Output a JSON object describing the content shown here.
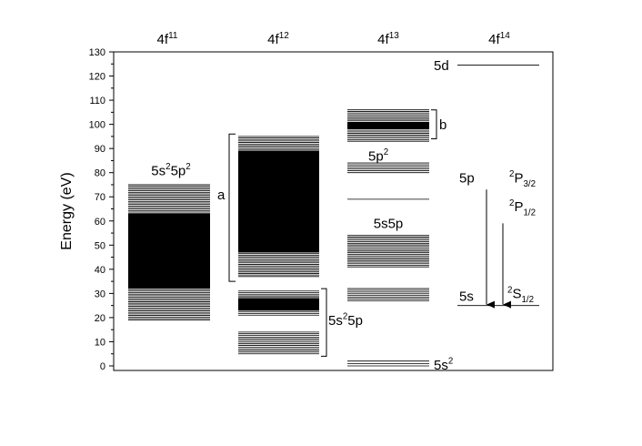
{
  "chart_data": {
    "type": "energy-level-diagram",
    "ylabel": "Energy (eV)",
    "ylim": [
      0,
      130
    ],
    "yticks": [
      0,
      10,
      20,
      30,
      40,
      50,
      60,
      70,
      80,
      90,
      100,
      110,
      120,
      130
    ],
    "columns": [
      {
        "base": "4f",
        "sup": "11"
      },
      {
        "base": "4f",
        "sup": "12"
      },
      {
        "base": "4f",
        "sup": "13"
      },
      {
        "base": "4f",
        "sup": "14"
      }
    ],
    "band_labels": [
      {
        "id": "c0-5s25p2",
        "parts": [
          [
            "5s",
            ""
          ],
          [
            "2",
            "sup"
          ],
          [
            "5p",
            ""
          ],
          [
            "2",
            "sup"
          ]
        ]
      },
      {
        "id": "c1-5s25p",
        "parts": [
          [
            "5s",
            ""
          ],
          [
            "2",
            "sup"
          ],
          [
            "5p",
            ""
          ]
        ]
      },
      {
        "id": "c2-5p2",
        "parts": [
          [
            "5p",
            ""
          ],
          [
            "2",
            "sup"
          ]
        ]
      },
      {
        "id": "c2-5s5p",
        "parts": [
          [
            "5s5p",
            ""
          ]
        ]
      },
      {
        "id": "c2-5s2",
        "parts": [
          [
            "5s",
            ""
          ],
          [
            "2",
            "sup"
          ]
        ]
      },
      {
        "id": "c3-5d",
        "parts": [
          [
            "5d",
            ""
          ]
        ]
      },
      {
        "id": "c3-5p",
        "parts": [
          [
            "5p",
            ""
          ]
        ]
      },
      {
        "id": "c3-5s",
        "parts": [
          [
            "5s",
            ""
          ]
        ]
      }
    ],
    "term_labels": [
      {
        "id": "2P32",
        "parts": [
          [
            "2",
            "sup"
          ],
          [
            "P",
            ""
          ],
          [
            "3/2",
            "sub"
          ]
        ]
      },
      {
        "id": "2P12",
        "parts": [
          [
            "2",
            "sup"
          ],
          [
            "P",
            ""
          ],
          [
            "1/2",
            "sub"
          ]
        ]
      },
      {
        "id": "2S12",
        "parts": [
          [
            "2",
            "sup"
          ],
          [
            "S",
            ""
          ],
          [
            "1/2",
            "sub"
          ]
        ]
      }
    ],
    "bracket_labels": {
      "a": "a",
      "b": "b"
    },
    "bands": [
      {
        "column": 0,
        "range": [
          19,
          75
        ],
        "dense": [
          32,
          63
        ]
      },
      {
        "column": 1,
        "range": [
          37,
          95
        ],
        "dense": [
          47,
          89
        ]
      },
      {
        "column": 1,
        "range": [
          21,
          31
        ],
        "dense": [
          23,
          28
        ]
      },
      {
        "column": 1,
        "range": [
          5,
          14
        ],
        "dense": null
      },
      {
        "column": 2,
        "range": [
          93,
          106
        ],
        "dense": [
          98,
          101
        ]
      },
      {
        "column": 2,
        "range": [
          80,
          84
        ],
        "dense": null
      },
      {
        "column": 2,
        "range": [
          69,
          69
        ],
        "dense": null
      },
      {
        "column": 2,
        "range": [
          41,
          54
        ],
        "dense": null
      },
      {
        "column": 2,
        "range": [
          27,
          32
        ],
        "dense": null
      },
      {
        "column": 2,
        "range": [
          0,
          2
        ],
        "dense": null
      }
    ],
    "single_levels": [
      {
        "column": 3,
        "energy": 124.5,
        "label": "5d"
      },
      {
        "column": 3,
        "energy": 25,
        "label": "5s"
      }
    ],
    "brackets": [
      {
        "id": "a",
        "range": [
          35,
          96
        ],
        "side": "left",
        "column": 1
      },
      {
        "id": "b",
        "range": [
          94,
          106
        ],
        "side": "right",
        "column": 2
      },
      {
        "id": "5s25p",
        "range": [
          4,
          32
        ],
        "side": "right",
        "column": 1
      }
    ],
    "transitions": [
      {
        "from": 73,
        "to": 25,
        "upper": "2P32"
      },
      {
        "from": 59,
        "to": 25,
        "upper": "2P12"
      }
    ]
  }
}
